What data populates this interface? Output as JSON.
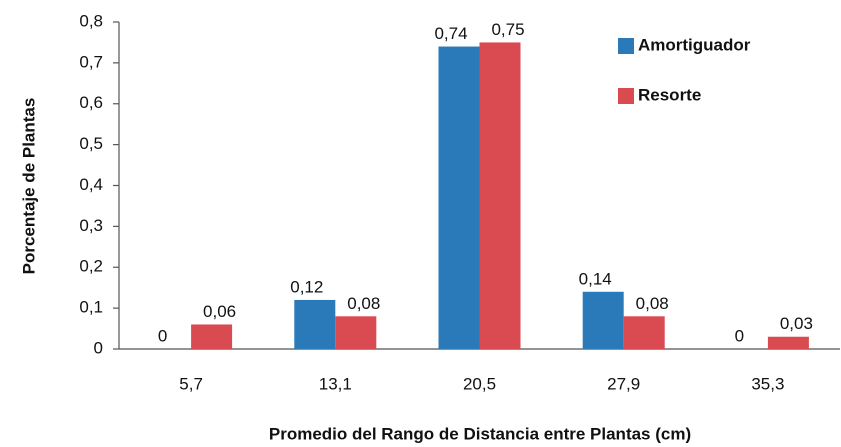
{
  "chart_data": {
    "type": "bar",
    "x_label": "Promedio del Rango de Distancia entre Plantas (cm)",
    "y_label": "Porcentaje de Plantas",
    "categories": [
      "5,7",
      "13,1",
      "20,5",
      "27,9",
      "35,3"
    ],
    "series": [
      {
        "name": "Amortiguador",
        "color": "#2a7ab9",
        "values": [
          0,
          0.12,
          0.74,
          0.14,
          0
        ],
        "value_labels": [
          "0",
          "0,12",
          "0,74",
          "0,14",
          "0"
        ]
      },
      {
        "name": "Resorte",
        "color": "#d94a51",
        "values": [
          0.06,
          0.08,
          0.75,
          0.08,
          0.03
        ],
        "value_labels": [
          "0,06",
          "0,08",
          "0,75",
          "0,08",
          "0,03"
        ]
      }
    ],
    "ylim": [
      0,
      0.8
    ],
    "yticks": [
      0,
      {
        "value": 0.1,
        "label": "0,1"
      },
      {
        "value": 0.2,
        "label": "0,2"
      },
      {
        "value": 0.3,
        "label": "0,3"
      },
      {
        "value": 0.4,
        "label": "0,4"
      },
      {
        "value": 0.5,
        "label": "0,5"
      },
      {
        "value": 0.6,
        "label": "0,6"
      },
      {
        "value": 0.7,
        "label": "0,7"
      },
      {
        "value": 0.8,
        "label": "0,8"
      }
    ],
    "grid": false,
    "legend": "top-right"
  }
}
